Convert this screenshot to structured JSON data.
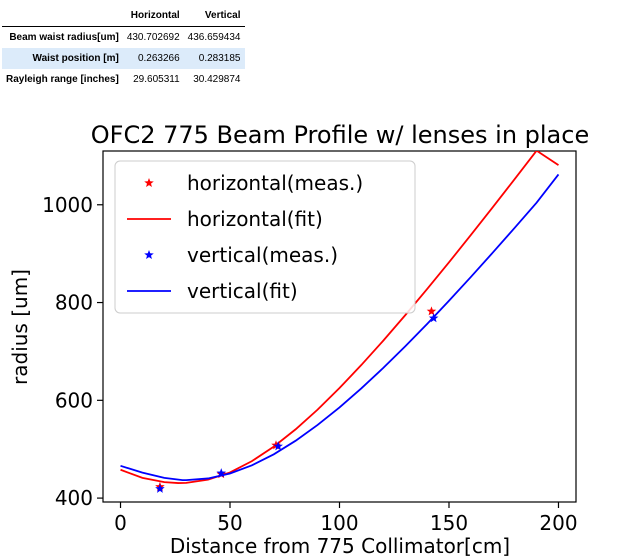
{
  "table": {
    "columns": [
      "",
      "Horizontal",
      "Vertical"
    ],
    "rows": [
      {
        "label": "Beam waist radius[um]",
        "horizontal": "430.702692",
        "vertical": "436.659434"
      },
      {
        "label": "Waist position [m]",
        "horizontal": "0.263266",
        "vertical": "0.283185"
      },
      {
        "label": "Rayleigh range [inches]",
        "horizontal": "29.605311",
        "vertical": "30.429874"
      }
    ]
  },
  "chart_data": {
    "type": "line",
    "title": "OFC2 775 Beam Profile w/ lenses in place",
    "xlabel": "Distance from 775 Collimator[cm]",
    "ylabel": "radius [um]",
    "xlim": [
      -8,
      208
    ],
    "ylim": [
      392,
      1110
    ],
    "xticks": [
      0,
      50,
      100,
      150,
      200
    ],
    "yticks": [
      400,
      600,
      800,
      1000
    ],
    "legend_position": "top-left",
    "grid": false,
    "series": [
      {
        "name": "horizontal(meas.)",
        "style": "markers",
        "marker": "*",
        "color": "#ff0000",
        "x": [
          18,
          46,
          71,
          142
        ],
        "y": [
          423,
          449,
          508,
          782
        ]
      },
      {
        "name": "horizontal(fit)",
        "style": "line",
        "color": "#ff0000",
        "x": [
          0,
          10,
          20,
          26.33,
          30,
          40,
          50,
          60,
          70,
          80,
          90,
          100,
          110,
          120,
          130,
          140,
          150,
          160,
          170,
          180,
          190,
          200
        ],
        "y": [
          458,
          441.3,
          432.7,
          430.7,
          431.2,
          437.7,
          452.5,
          475.6,
          505.3,
          540.8,
          581.0,
          625.1,
          672.4,
          722.1,
          774.0,
          827.5,
          882.3,
          938.2,
          995.0,
          1052.6,
          1110.7,
          1081.0
        ]
      },
      {
        "name": "vertical(meas.)",
        "style": "markers",
        "marker": "*",
        "color": "#0000ff",
        "x": [
          18,
          46,
          72,
          143
        ],
        "y": [
          419,
          451,
          506,
          768
        ]
      },
      {
        "name": "vertical(fit)",
        "style": "line",
        "color": "#0000ff",
        "x": [
          0,
          10,
          20,
          28.32,
          30,
          40,
          50,
          60,
          70,
          80,
          90,
          100,
          110,
          120,
          130,
          140,
          150,
          160,
          170,
          180,
          190,
          200
        ],
        "y": [
          466,
          452.0,
          441.4,
          436.7,
          436.8,
          440.2,
          450.4,
          467.0,
          489.6,
          517.4,
          549.6,
          585.5,
          624.6,
          666.3,
          710.3,
          756.2,
          803.7,
          852.4,
          902.2,
          952.9,
          1004.3,
          1062.0
        ]
      }
    ]
  }
}
